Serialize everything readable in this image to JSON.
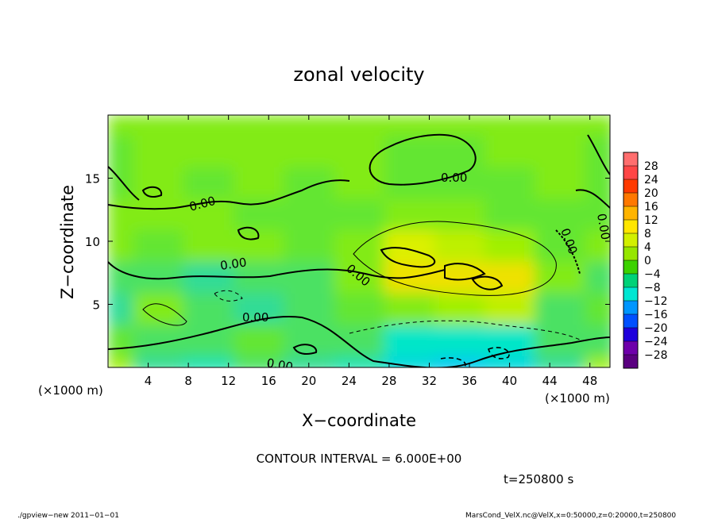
{
  "chart_data": {
    "type": "heatmap",
    "title": "zonal velocity",
    "xlabel": "X−coordinate",
    "ylabel": "Z−coordinate",
    "x_unit": "(×1000 m)",
    "y_unit": "(×1000 m)",
    "xlim": [
      0,
      50
    ],
    "ylim": [
      0,
      20
    ],
    "x_ticks": [
      4,
      8,
      12,
      16,
      20,
      24,
      28,
      32,
      36,
      40,
      44,
      48
    ],
    "y_ticks": [
      5,
      10,
      15
    ],
    "contour_interval_label": "CONTOUR INTERVAL = 6.000E+00",
    "time_label": "t=250800 s",
    "contour_labels": [
      "0.00",
      "0.00",
      "0.00",
      "0.00",
      "0.00",
      "0.00",
      "0.00",
      "0.00"
    ],
    "colorbar": {
      "labels": [
        "28",
        "24",
        "20",
        "16",
        "12",
        "8",
        "4",
        "0",
        "−4",
        "−8",
        "−12",
        "−16",
        "−20",
        "−24",
        "−28"
      ],
      "colors": [
        "#ff6e6e",
        "#ff4646",
        "#ff3a00",
        "#ff7800",
        "#ffb400",
        "#ffe600",
        "#d2f000",
        "#96e600",
        "#3cd200",
        "#00d278",
        "#00e6d2",
        "#0096ff",
        "#0050ff",
        "#1e00dc",
        "#6e00aa",
        "#5a0080"
      ]
    },
    "approx_field": {
      "x": [
        0,
        5,
        10,
        15,
        20,
        25,
        30,
        35,
        40,
        45,
        50
      ],
      "z": [
        0,
        2.5,
        5,
        7.5,
        10,
        12.5,
        15,
        17.5,
        20
      ],
      "values": [
        [
          4,
          -4,
          -6,
          -2,
          -4,
          -6,
          -10,
          -12,
          -10,
          -4,
          4
        ],
        [
          0,
          -2,
          -2,
          0,
          -2,
          -2,
          -8,
          -8,
          -8,
          -2,
          -2
        ],
        [
          -4,
          2,
          -2,
          -4,
          -2,
          0,
          2,
          4,
          6,
          -2,
          0
        ],
        [
          -2,
          -2,
          -4,
          -2,
          -2,
          2,
          10,
          10,
          10,
          2,
          -2
        ],
        [
          2,
          0,
          2,
          2,
          0,
          2,
          8,
          6,
          4,
          0,
          2
        ],
        [
          2,
          2,
          2,
          0,
          0,
          0,
          2,
          2,
          0,
          0,
          0
        ],
        [
          0,
          2,
          0,
          2,
          0,
          2,
          0,
          0,
          0,
          2,
          0
        ],
        [
          0,
          2,
          2,
          2,
          2,
          2,
          0,
          0,
          2,
          2,
          0
        ],
        [
          2,
          2,
          2,
          2,
          2,
          2,
          2,
          2,
          2,
          2,
          2
        ]
      ]
    }
  },
  "footer": {
    "left": "./gpview−new   2011−01−01",
    "right": "MarsCond_VelX.nc@VelX,x=0:50000,z=0:20000,t=250800"
  }
}
